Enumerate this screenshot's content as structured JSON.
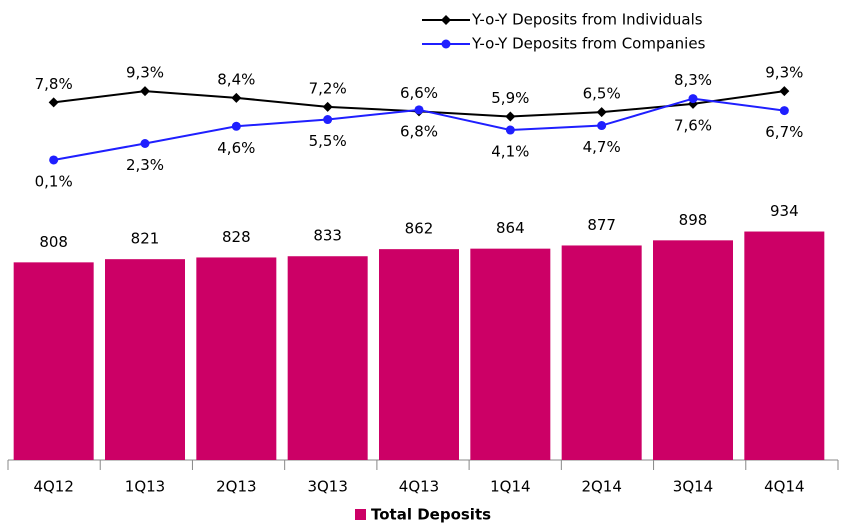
{
  "chart_data": {
    "type": "combo",
    "categories": [
      "4Q12",
      "1Q13",
      "2Q13",
      "3Q13",
      "4Q13",
      "1Q14",
      "2Q14",
      "3Q14",
      "4Q14"
    ],
    "ylim": [
      0,
      1300
    ],
    "y2lim": [
      -40,
      2.5
    ],
    "series": [
      {
        "name": "Total Deposits",
        "type": "bar",
        "color": "#cc0066",
        "values": [
          808,
          821,
          828,
          833,
          862,
          864,
          877,
          898,
          934
        ]
      },
      {
        "name": "Y-o-Y Deposits from Individuals",
        "type": "line",
        "axis": "y2",
        "color": "#000000",
        "marker": "diamond",
        "values": [
          7.8,
          9.3,
          8.4,
          7.2,
          6.6,
          5.9,
          6.5,
          7.6,
          9.3
        ],
        "value_labels": [
          "7,8%",
          "9,3%",
          "8,4%",
          "7,2%",
          "6,6%",
          "5,9%",
          "6,5%",
          "7,6%",
          "9,3%"
        ]
      },
      {
        "name": "Y-o-Y Deposits from Companies",
        "type": "line",
        "axis": "y2",
        "color": "#1f1fff",
        "marker": "circle",
        "values": [
          0.1,
          2.3,
          4.6,
          5.5,
          6.8,
          4.1,
          4.7,
          8.3,
          6.7
        ],
        "value_labels": [
          "0,1%",
          "2,3%",
          "4,6%",
          "5,5%",
          "6,8%",
          "4,1%",
          "4,7%",
          "8,3%",
          "6,7%"
        ]
      }
    ]
  }
}
